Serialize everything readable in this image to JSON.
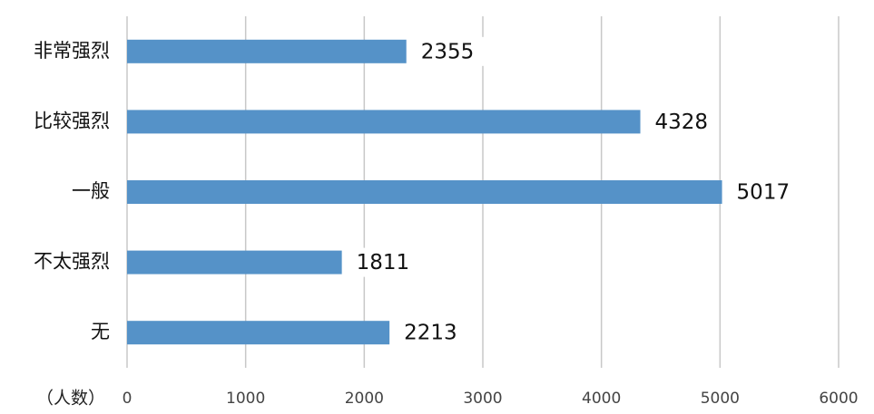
{
  "chart_data": {
    "type": "bar",
    "orientation": "horizontal",
    "x_label": "（人数）",
    "categories": [
      "非常强烈",
      "比较强烈",
      "一般",
      "不太强烈",
      "无"
    ],
    "values": [
      2355,
      4328,
      5017,
      1811,
      2213
    ],
    "color": "#5592c8",
    "xlim": [
      0,
      6000
    ],
    "xticks": [
      0,
      1000,
      2000,
      3000,
      4000,
      5000,
      6000
    ],
    "grid": true
  }
}
